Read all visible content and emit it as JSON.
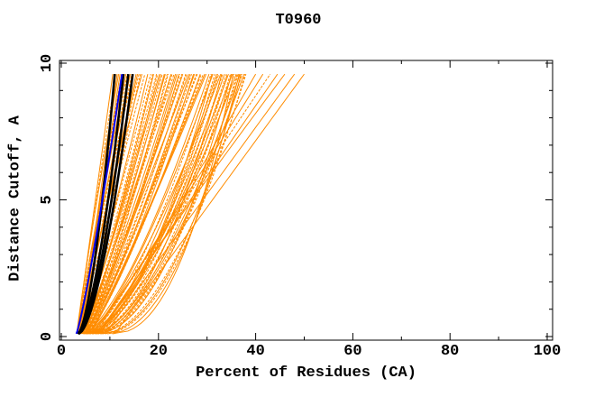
{
  "chart_data": {
    "type": "line",
    "title": "T0960",
    "xlabel": "Percent of Residues (CA)",
    "ylabel": "Distance Cutoff, A",
    "xlim": [
      0,
      100
    ],
    "ylim": [
      0,
      10
    ],
    "x_major_ticks": [
      0,
      20,
      40,
      60,
      80,
      100
    ],
    "x_minor_ticks": [
      10,
      30,
      50,
      70,
      90
    ],
    "y_major_ticks": [
      0,
      5,
      10
    ],
    "y_minor_ticks": [
      1,
      2,
      3,
      4,
      6,
      7,
      8,
      9
    ],
    "grid": false,
    "legend": "none",
    "background": "#ffffff",
    "axis_color": "#000000",
    "curve_y_start": 0.1,
    "curve_y_end": 9.6,
    "series_model": "x(y) = x0 + (x1 - x0) * t^p, t = (y - y_start)/(y_end - y_start); entries are [x0, x1, p, dashed]",
    "series": [
      {
        "name": "server-models-orange",
        "color": "#ff8c00",
        "width": 1,
        "curves": [
          [
            3.2,
            10.6,
            1.0,
            0
          ],
          [
            3.3,
            11.2,
            1.05,
            1
          ],
          [
            3.2,
            11.8,
            1.1,
            0
          ],
          [
            3.4,
            12.4,
            1.0,
            1
          ],
          [
            3.3,
            13.0,
            1.08,
            0
          ],
          [
            3.5,
            13.6,
            1.12,
            1
          ],
          [
            3.4,
            14.2,
            1.05,
            0
          ],
          [
            3.6,
            14.8,
            1.1,
            1
          ],
          [
            3.5,
            15.4,
            1.0,
            0
          ],
          [
            3.7,
            16.0,
            1.08,
            1
          ],
          [
            3.6,
            16.6,
            1.12,
            0
          ],
          [
            3.8,
            17.2,
            1.05,
            1
          ],
          [
            3.7,
            11.5,
            0.95,
            0
          ],
          [
            3.9,
            12.7,
            1.0,
            1
          ],
          [
            4.0,
            13.3,
            1.1,
            0
          ],
          [
            4.1,
            14.5,
            1.02,
            1
          ],
          [
            4.0,
            15.7,
            1.08,
            0
          ],
          [
            4.2,
            16.3,
            0.98,
            1
          ],
          [
            4.1,
            12.1,
            1.05,
            0
          ],
          [
            4.3,
            13.9,
            1.1,
            1
          ],
          [
            3.5,
            17.8,
            0.9,
            0
          ],
          [
            3.8,
            18.4,
            0.95,
            1
          ],
          [
            4.0,
            19.0,
            0.85,
            0
          ],
          [
            4.2,
            19.6,
            0.9,
            1
          ],
          [
            4.4,
            20.2,
            0.95,
            0
          ],
          [
            4.6,
            20.8,
            0.88,
            1
          ],
          [
            4.8,
            21.4,
            0.92,
            0
          ],
          [
            5.0,
            22.0,
            0.85,
            1
          ],
          [
            4.0,
            22.6,
            0.9,
            0
          ],
          [
            4.3,
            23.2,
            0.95,
            1
          ],
          [
            4.6,
            23.8,
            0.82,
            0
          ],
          [
            4.9,
            24.4,
            0.88,
            1
          ],
          [
            5.2,
            25.0,
            0.92,
            0
          ],
          [
            5.5,
            25.6,
            0.85,
            1
          ],
          [
            4.2,
            26.2,
            0.9,
            0
          ],
          [
            4.5,
            26.8,
            0.8,
            1
          ],
          [
            4.8,
            27.4,
            0.85,
            0
          ],
          [
            5.1,
            28.0,
            0.9,
            1
          ],
          [
            5.4,
            28.6,
            0.82,
            0
          ],
          [
            5.7,
            29.2,
            0.87,
            1
          ],
          [
            6.0,
            29.8,
            0.92,
            0
          ],
          [
            3.6,
            18.8,
            0.85,
            1
          ],
          [
            3.9,
            20.5,
            0.9,
            0
          ],
          [
            4.1,
            21.8,
            0.8,
            1
          ],
          [
            4.4,
            23.5,
            0.85,
            0
          ],
          [
            4.7,
            24.8,
            0.9,
            1
          ],
          [
            5.0,
            26.5,
            0.82,
            0
          ],
          [
            5.3,
            27.8,
            0.87,
            1
          ],
          [
            5.6,
            29.5,
            0.9,
            0
          ],
          [
            3.7,
            19.8,
            0.78,
            1
          ],
          [
            4.0,
            21.2,
            0.83,
            0
          ],
          [
            4.3,
            22.8,
            0.88,
            1
          ],
          [
            4.6,
            24.2,
            0.8,
            0
          ],
          [
            4.9,
            25.8,
            0.85,
            1
          ],
          [
            5.2,
            27.2,
            0.78,
            0
          ],
          [
            5.5,
            28.8,
            0.83,
            1
          ],
          [
            4.5,
            30.4,
            0.7,
            0
          ],
          [
            5.0,
            30.8,
            0.65,
            1
          ],
          [
            5.5,
            31.2,
            0.75,
            0
          ],
          [
            6.0,
            31.6,
            0.6,
            1
          ],
          [
            6.5,
            32.0,
            0.7,
            0
          ],
          [
            7.0,
            32.4,
            0.65,
            1
          ],
          [
            4.8,
            32.8,
            0.72,
            0
          ],
          [
            5.3,
            33.2,
            0.6,
            1
          ],
          [
            5.8,
            33.6,
            0.68,
            0
          ],
          [
            6.3,
            34.0,
            0.62,
            1
          ],
          [
            6.8,
            34.4,
            0.7,
            0
          ],
          [
            7.3,
            34.8,
            0.58,
            1
          ],
          [
            5.0,
            35.2,
            0.66,
            0
          ],
          [
            5.5,
            35.6,
            0.6,
            1
          ],
          [
            6.0,
            36.0,
            0.68,
            0
          ],
          [
            6.5,
            36.4,
            0.55,
            1
          ],
          [
            7.0,
            36.8,
            0.62,
            0
          ],
          [
            7.5,
            37.2,
            0.58,
            1
          ],
          [
            8.0,
            37.6,
            0.65,
            0
          ],
          [
            8.5,
            38.0,
            0.55,
            1
          ],
          [
            4.6,
            31.0,
            0.55,
            0
          ],
          [
            5.2,
            32.2,
            0.6,
            1
          ],
          [
            5.8,
            33.0,
            0.52,
            0
          ],
          [
            6.4,
            34.2,
            0.58,
            1
          ],
          [
            7.0,
            35.0,
            0.5,
            0
          ],
          [
            7.6,
            36.2,
            0.55,
            1
          ],
          [
            8.2,
            37.0,
            0.5,
            0
          ],
          [
            9.0,
            37.8,
            0.52,
            1
          ],
          [
            9.5,
            36.6,
            0.48,
            0
          ],
          [
            10.5,
            35.4,
            0.45,
            0
          ],
          [
            6.0,
            40.0,
            0.9,
            0
          ],
          [
            6.5,
            41.5,
            0.95,
            0
          ],
          [
            7.0,
            43.0,
            1.0,
            1
          ],
          [
            7.5,
            44.5,
            1.0,
            0
          ],
          [
            8.0,
            46.0,
            1.05,
            0
          ],
          [
            9.0,
            48.0,
            1.0,
            0
          ],
          [
            11.0,
            50.0,
            1.0,
            0
          ]
        ]
      },
      {
        "name": "highlighted-models-black",
        "color": "#000000",
        "width": 2.6,
        "curves": [
          [
            3.4,
            11.0,
            0.62,
            0
          ],
          [
            3.4,
            12.8,
            0.62,
            0
          ],
          [
            3.5,
            13.8,
            0.62,
            0
          ],
          [
            3.6,
            14.7,
            0.62,
            0
          ]
        ]
      },
      {
        "name": "reference-model-blue",
        "color": "#0000ee",
        "width": 2,
        "curves": [
          [
            3.1,
            12.5,
            0.85,
            0
          ]
        ]
      }
    ]
  }
}
